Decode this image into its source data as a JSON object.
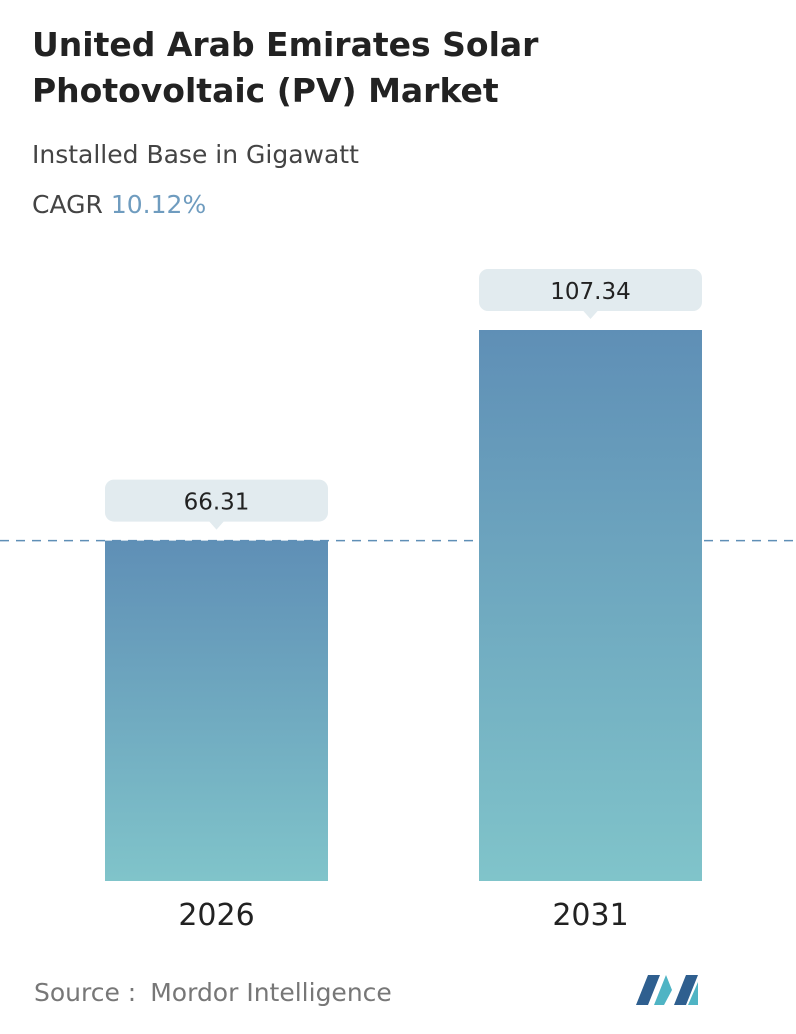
{
  "chart_data": {
    "type": "bar",
    "title": "United Arab Emirates Solar Photovoltaic (PV) Market",
    "subtitle": "Installed Base in Gigawatt",
    "cagr_label": "CAGR",
    "cagr": "10.12%",
    "categories": [
      "2026",
      "2031"
    ],
    "values": [
      66.31,
      107.34
    ],
    "color_top": "#5f8fb6",
    "color_bottom": "#80c4ca",
    "source_label": "Source :",
    "source": "Mordor Intelligence"
  }
}
